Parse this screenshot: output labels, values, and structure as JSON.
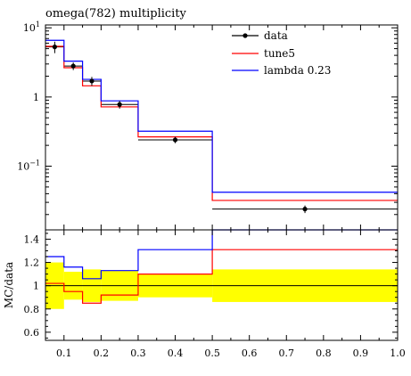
{
  "chart_data": {
    "type": "histogram",
    "title": "omega(782) multiplicity",
    "x_edges": [
      0.05,
      0.1,
      0.15,
      0.2,
      0.3,
      0.5,
      1.0
    ],
    "main": {
      "yscale": "log",
      "ylim": [
        0.012,
        11
      ],
      "ytick_labels": [
        {
          "value": 0.1,
          "base": "10",
          "exp": "−1"
        },
        {
          "value": 1,
          "label": "1"
        },
        {
          "value": 10,
          "base": "10",
          "exp": "1"
        }
      ]
    },
    "series": [
      {
        "name": "data",
        "style": "points",
        "color": "#000000",
        "x": [
          0.075,
          0.125,
          0.175,
          0.25,
          0.4,
          0.75
        ],
        "y": [
          5.3,
          2.8,
          1.7,
          0.78,
          0.24,
          0.024
        ],
        "yerr": [
          1.0,
          0.35,
          0.25,
          0.1,
          0.025,
          0.003
        ]
      },
      {
        "name": "tune5",
        "style": "step",
        "color": "#ff0000",
        "values": [
          5.4,
          2.65,
          1.45,
          0.72,
          0.265,
          0.032
        ]
      },
      {
        "name": "lambda 0.23",
        "style": "step",
        "color": "#0000ff",
        "values": [
          6.6,
          3.3,
          1.8,
          0.88,
          0.32,
          0.042
        ]
      }
    ],
    "legend": {
      "position": "top-right",
      "entries": [
        "data",
        "tune5",
        "lambda 0.23"
      ]
    },
    "ratio": {
      "ylabel": "MC/data",
      "ylim": [
        0.53,
        1.48
      ],
      "yticks": [
        0.6,
        0.8,
        1,
        1.2,
        1.4
      ],
      "ytick_labels": [
        "0.6",
        "0.8",
        "1",
        "1.2",
        "1.4"
      ],
      "band_color": "#ffff00",
      "data_band": [
        [
          0.8,
          1.2
        ],
        [
          0.88,
          1.12
        ],
        [
          0.86,
          1.14
        ],
        [
          0.87,
          1.13
        ],
        [
          0.9,
          1.1
        ],
        [
          0.86,
          1.14
        ]
      ],
      "tune5": [
        1.02,
        0.95,
        0.85,
        0.92,
        1.1,
        1.31
      ],
      "lambda_023": [
        1.25,
        1.16,
        1.06,
        1.13,
        1.31,
        1.75
      ]
    },
    "x_ticks": [
      0.1,
      0.2,
      0.3,
      0.4,
      0.5,
      0.6,
      0.7,
      0.8,
      0.9,
      1.0
    ],
    "x_tick_labels": [
      "0.1",
      "0.2",
      "0.3",
      "0.4",
      "0.5",
      "0.6",
      "0.7",
      "0.8",
      "0.9",
      "1.0"
    ]
  }
}
